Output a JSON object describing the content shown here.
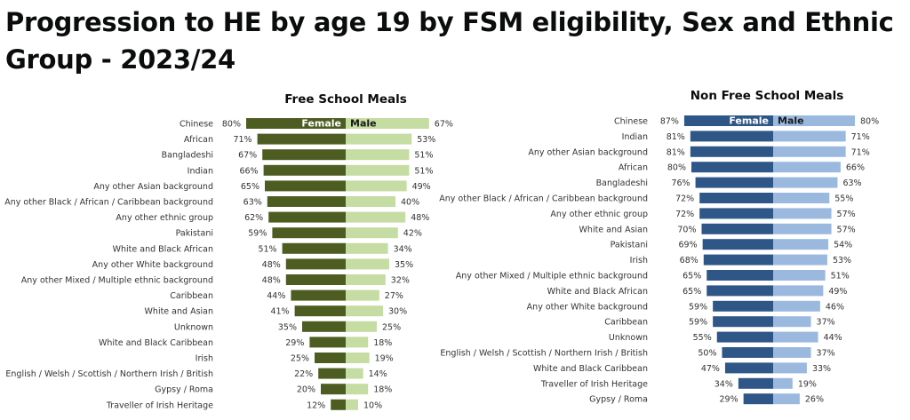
{
  "page": {
    "title": "Progression to HE by age 19 by FSM eligibility, Sex and Ethnic Group - 2023/24"
  },
  "chart_data": [
    {
      "type": "bar",
      "title": "Free School Meals",
      "series_labels": {
        "female": "Female",
        "male": "Male"
      },
      "unit": "%",
      "colors": {
        "female": "#4d5d22",
        "male": "#c5dca2"
      },
      "categories": [
        "Chinese",
        "African",
        "Bangladeshi",
        "Indian",
        "Any other Asian background",
        "Any other Black / African / Caribbean background",
        "Any other ethnic group",
        "Pakistani",
        "White and Black African",
        "Any other White background",
        "Any other Mixed / Multiple ethnic background",
        "Caribbean",
        "White and Asian",
        "Unknown",
        "White and Black Caribbean",
        "Irish",
        "English / Welsh / Scottish / Northern Irish / British",
        "Gypsy / Roma",
        "Traveller of Irish Heritage"
      ],
      "female": [
        80,
        71,
        67,
        66,
        65,
        63,
        62,
        59,
        51,
        48,
        48,
        44,
        41,
        35,
        29,
        25,
        22,
        20,
        12
      ],
      "male": [
        67,
        53,
        51,
        51,
        49,
        40,
        48,
        42,
        34,
        35,
        32,
        27,
        30,
        25,
        18,
        19,
        14,
        18,
        10
      ]
    },
    {
      "type": "bar",
      "title": "Non Free School Meals",
      "series_labels": {
        "female": "Female",
        "male": "Male"
      },
      "unit": "%",
      "colors": {
        "female": "#2e5687",
        "male": "#9bb9df"
      },
      "categories": [
        "Chinese",
        "Indian",
        "Any other Asian background",
        "African",
        "Bangladeshi",
        "Any other Black / African / Caribbean background",
        "Any other ethnic group",
        "White and Asian",
        "Pakistani",
        "Irish",
        "Any other Mixed / Multiple ethnic background",
        "White and Black African",
        "Any other White background",
        "Caribbean",
        "Unknown",
        "English / Welsh / Scottish / Northern Irish / British",
        "White and Black Caribbean",
        "Traveller of Irish Heritage",
        "Gypsy / Roma"
      ],
      "female": [
        87,
        81,
        81,
        80,
        76,
        72,
        72,
        70,
        69,
        68,
        65,
        65,
        59,
        59,
        55,
        50,
        47,
        34,
        29
      ],
      "male": [
        80,
        71,
        71,
        66,
        63,
        55,
        57,
        57,
        54,
        53,
        51,
        49,
        46,
        37,
        44,
        37,
        33,
        19,
        26
      ]
    }
  ]
}
